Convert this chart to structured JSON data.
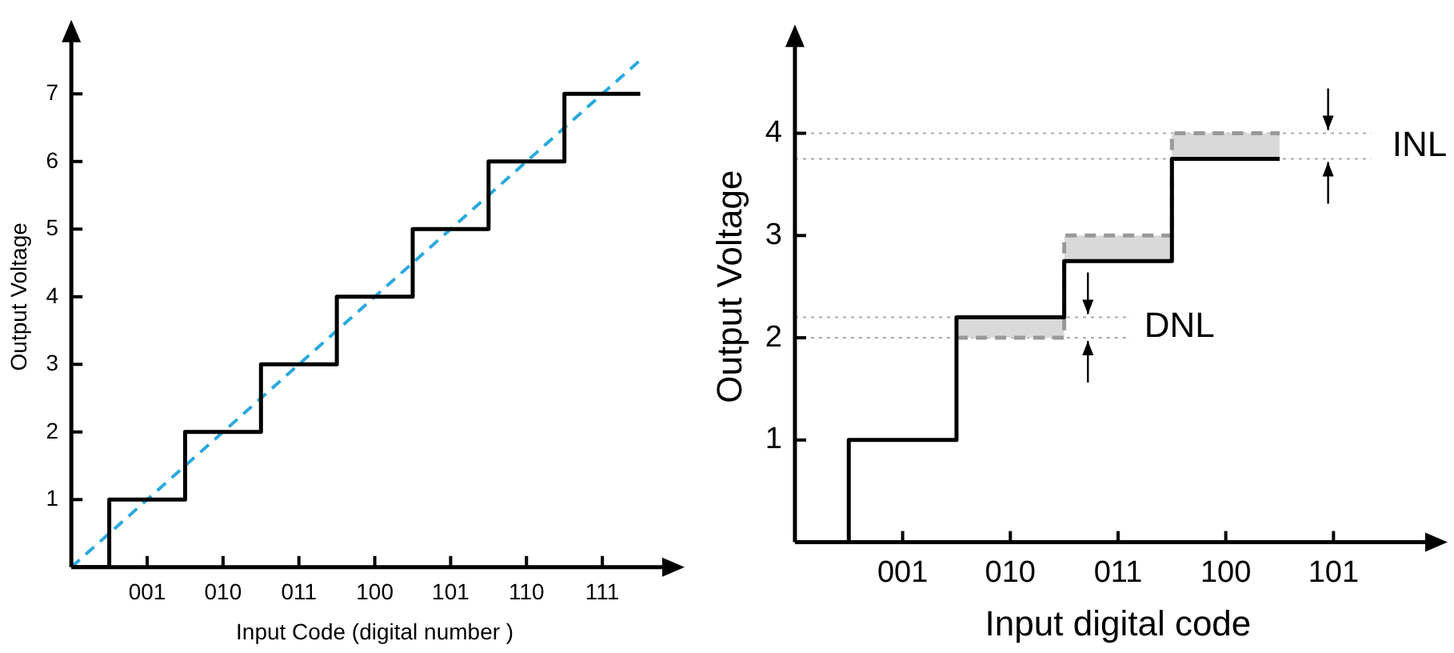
{
  "chart_data": [
    {
      "type": "step",
      "xlabel": "Input Code (digital number )",
      "ylabel": "Output Voltage",
      "ylim": [
        0,
        8
      ],
      "categories": [
        null,
        null,
        "001",
        null,
        "010",
        null,
        "011",
        null,
        "100",
        null,
        "101",
        null,
        "110",
        null,
        "111",
        null,
        null
      ],
      "yticks": [
        1,
        2,
        3,
        4,
        5,
        6,
        7
      ],
      "grid": false,
      "series": [
        {
          "color": "#000000",
          "values": [
            0,
            1,
            1,
            2,
            2,
            3,
            3,
            4,
            4,
            5,
            5,
            6,
            6,
            7,
            7,
            7,
            null
          ]
        },
        {
          "type": "line",
          "color": "#29a9e0",
          "line_style": "dashed",
          "values": [
            0,
            0.5,
            1,
            1.5,
            2,
            2.5,
            3,
            3.5,
            4,
            4.5,
            5,
            5.5,
            6,
            6.5,
            7,
            7.5,
            null
          ]
        }
      ]
    },
    {
      "type": "step",
      "xlabel": "Input digital code",
      "ylabel": "Output Voltage",
      "ylim": [
        0,
        5
      ],
      "categories": [
        null,
        null,
        "001",
        null,
        "010",
        null,
        "011",
        null,
        "100",
        null,
        "101",
        null,
        null
      ],
      "yticks": [
        1,
        2,
        3,
        4
      ],
      "grid": false,
      "series": [
        {
          "color": "#999999",
          "line_style": "dashed",
          "values": [
            null,
            null,
            null,
            2,
            2,
            3,
            3,
            4,
            4,
            4,
            null,
            null,
            null
          ],
          "lower": [
            null,
            null,
            null,
            2,
            2,
            2.75,
            2.75,
            3.75,
            3.75,
            3.75,
            null,
            null,
            null
          ],
          "upper": [
            null,
            null,
            null,
            2.2,
            2.2,
            3,
            3,
            4,
            4,
            4,
            null,
            null,
            null
          ]
        },
        {
          "color": "#000000",
          "values": [
            0,
            1,
            1,
            2.2,
            2.2,
            2.75,
            2.75,
            3.75,
            3.75,
            3.75,
            null,
            null,
            null
          ]
        }
      ],
      "ref_lines": [
        {
          "axis": "y",
          "value": 4,
          "color": "#aaaaaa",
          "line_style": "dotted"
        },
        {
          "axis": "y",
          "value": 3.75,
          "color": "#aaaaaa",
          "line_style": "dotted"
        },
        {
          "axis": "y",
          "value": 2.2,
          "color": "#aaaaaa",
          "line_style": "dotted"
        },
        {
          "axis": "y",
          "value": 2,
          "color": "#aaaaaa",
          "line_style": "dotted"
        }
      ],
      "annotations": [
        "DNL",
        "INL"
      ]
    }
  ]
}
